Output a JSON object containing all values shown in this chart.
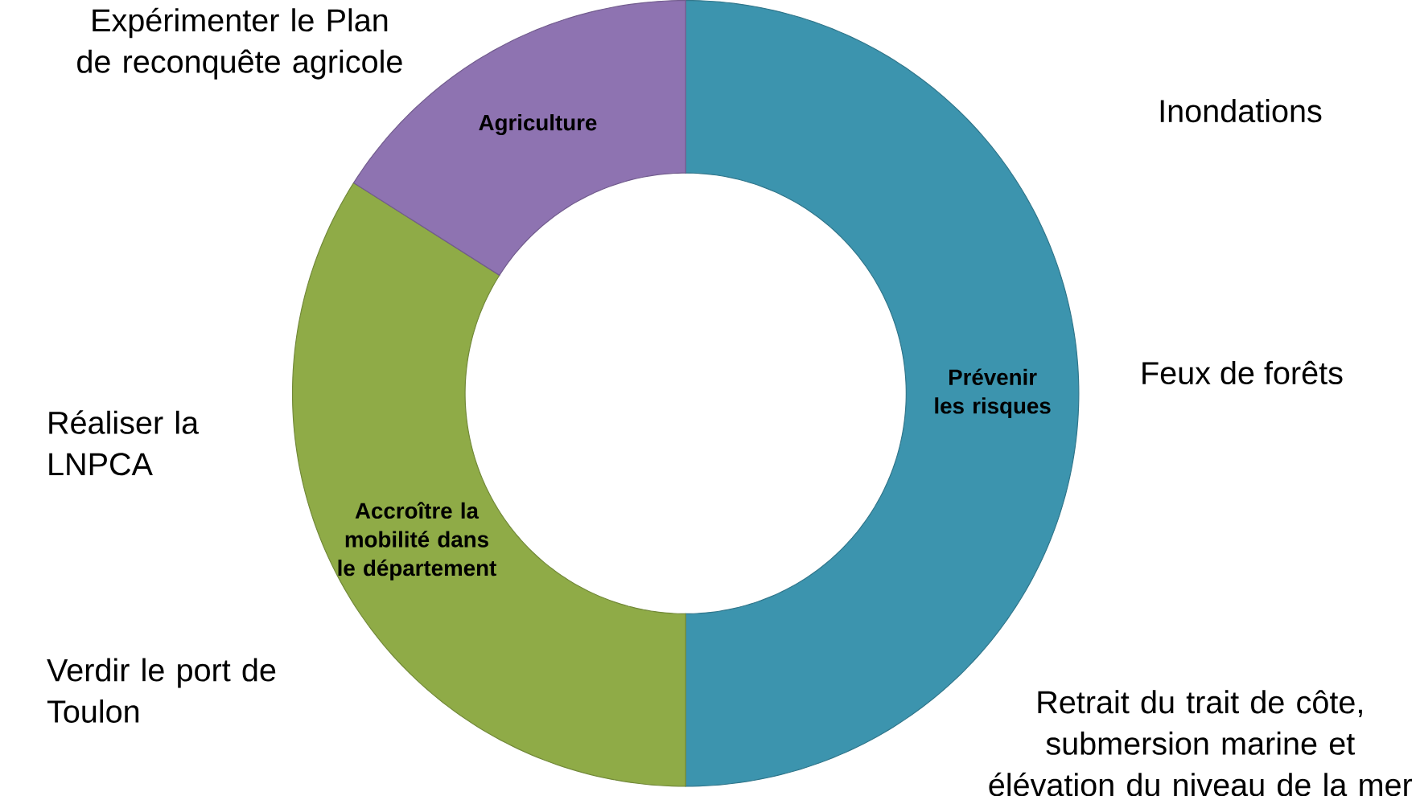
{
  "chart_data": {
    "type": "donut",
    "categories": [
      "Prévenir les risques",
      "Accroître la mobilité dans le département",
      "Agriculture"
    ],
    "values": [
      50,
      34,
      16
    ],
    "colors": [
      "#3c94ae",
      "#8fab47",
      "#8e73b1"
    ],
    "annotations": [
      "Expérimenter le Plan de reconquête agricole",
      "Inondations",
      "Feux de forêts",
      "Réaliser la LNPCA",
      "Verdir le port de Toulon",
      "Retrait du trait de côte, submersion marine et élévation du niveau de la mer"
    ]
  }
}
